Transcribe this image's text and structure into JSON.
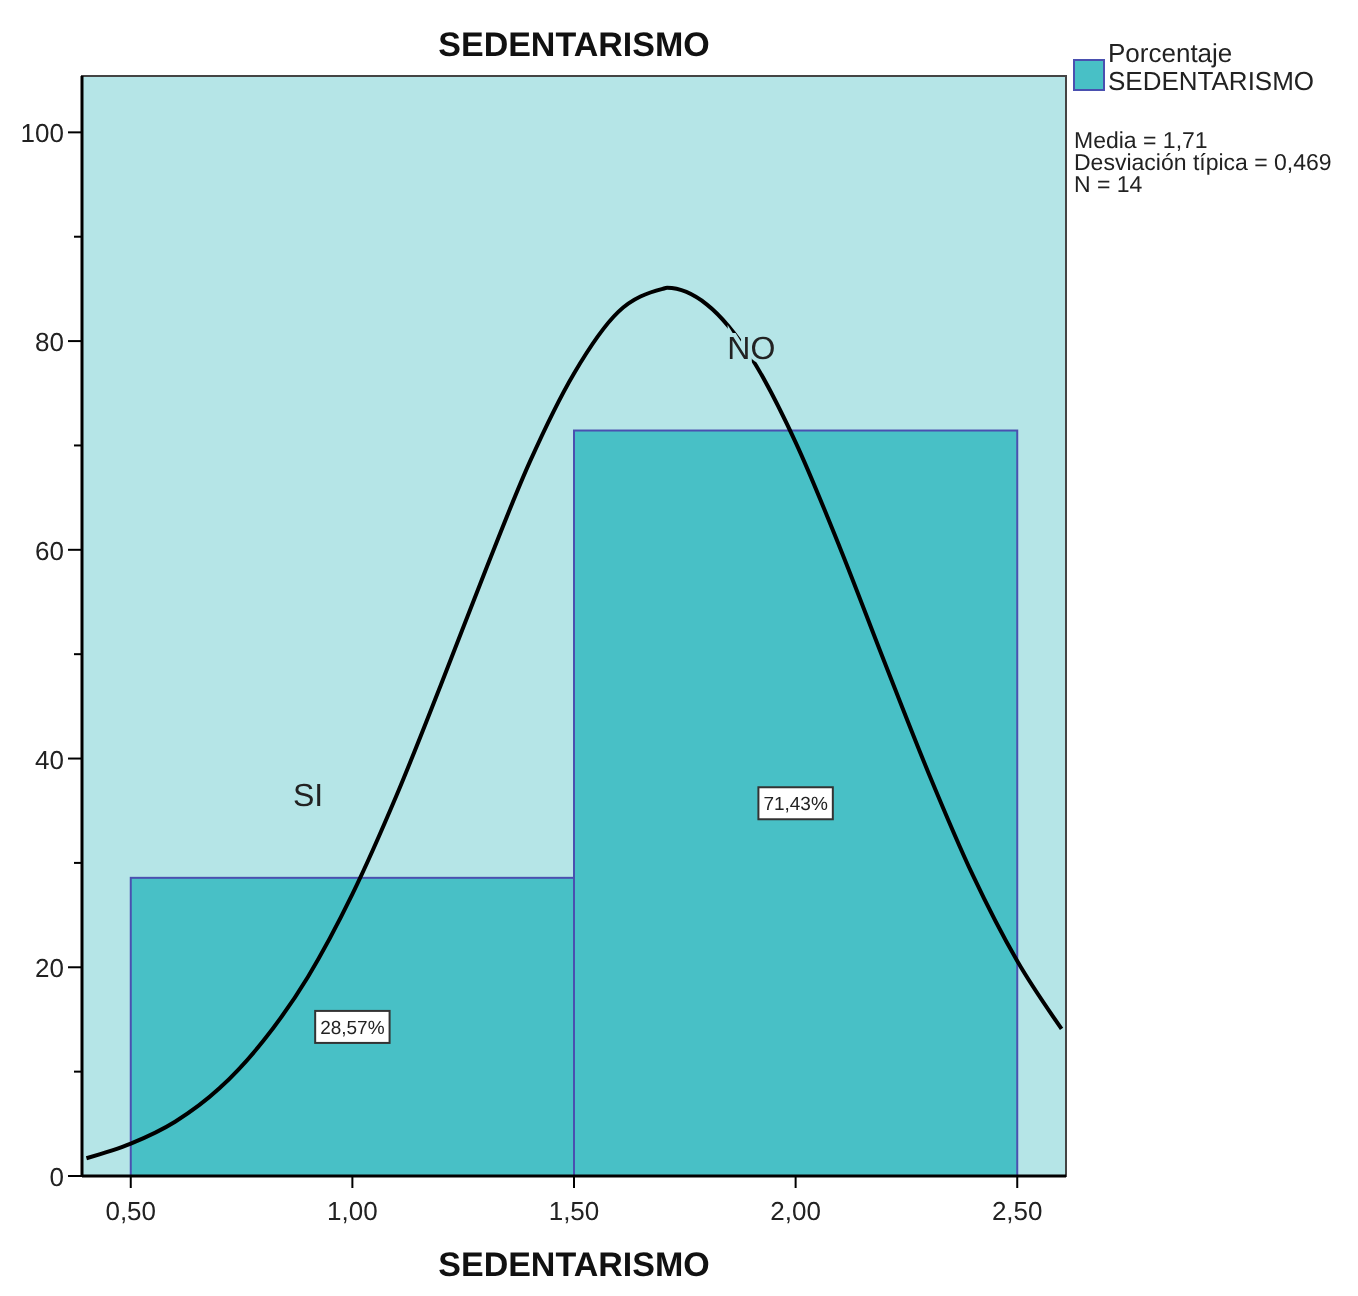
{
  "chart_data": {
    "type": "histogram",
    "title": "SEDENTARISMO",
    "xlabel": "SEDENTARISMO",
    "bins": [
      0.5,
      1.5,
      2.5
    ],
    "series": [
      {
        "name": "Porcentaje SEDENTARISMO",
        "color": "#48c0c6",
        "values": [
          28.57,
          71.43
        ],
        "value_labels": [
          "28,57%",
          "71,43%"
        ]
      },
      {
        "type": "line",
        "color": "#000000",
        "x": [
          0.4,
          0.5,
          0.6,
          0.7,
          0.8,
          0.9,
          1.0,
          1.1,
          1.2,
          1.3,
          1.4,
          1.5,
          1.6,
          1.7,
          1.71,
          1.8,
          1.9,
          2.0,
          2.1,
          2.2,
          2.3,
          2.4,
          2.5,
          2.6
        ],
        "values": [
          1.7,
          3.1,
          5.2,
          8.4,
          13.0,
          19.1,
          27.0,
          36.5,
          47.1,
          58.0,
          68.4,
          76.9,
          82.8,
          85.0,
          85.1,
          83.5,
          78.4,
          70.3,
          60.2,
          49.3,
          38.6,
          28.8,
          20.6,
          14.1
        ]
      }
    ],
    "annotations": [
      "SI",
      "NO",
      "Media = 1,71",
      "Desviación típica = 0,469",
      "N = 14"
    ],
    "xlim": [
      0.39,
      2.61
    ],
    "ylim": [
      0,
      105.4
    ],
    "xticks": [
      {
        "value": 0.5,
        "label": "0,50"
      },
      {
        "value": 1.0,
        "label": "1,00"
      },
      {
        "value": 1.5,
        "label": "1,50"
      },
      {
        "value": 2.0,
        "label": "2,00"
      },
      {
        "value": 2.5,
        "label": "2,50"
      }
    ],
    "yticks": [
      0,
      {
        "value": 10,
        "label": null
      },
      20,
      {
        "value": 30,
        "label": null
      },
      40,
      {
        "value": 50,
        "label": null
      },
      60,
      {
        "value": 70,
        "label": null
      },
      80,
      {
        "value": 90,
        "label": null
      },
      100
    ],
    "grid": false,
    "legend": "top right"
  }
}
